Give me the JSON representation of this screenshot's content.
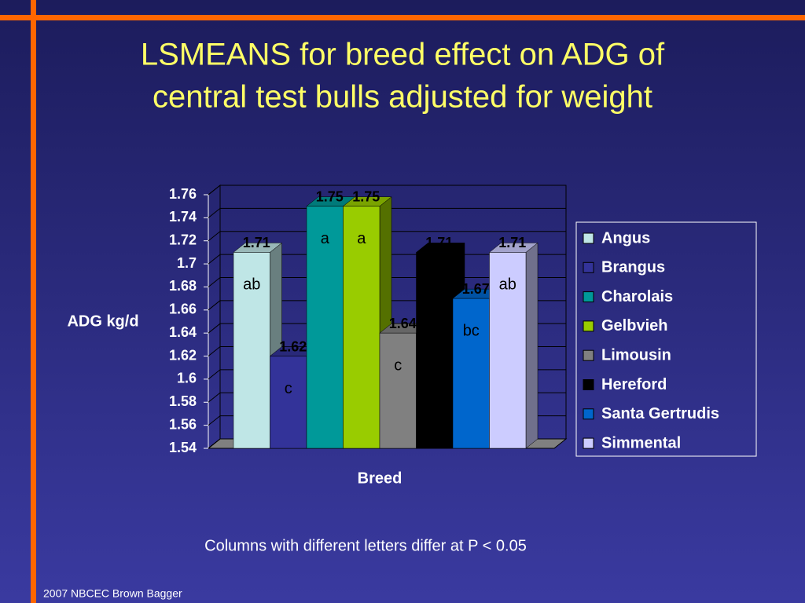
{
  "chart_data": {
    "type": "bar3d",
    "title": [
      "LSMEANS for breed effect on ADG of",
      "central test bulls adjusted for weight"
    ],
    "xlabel": "Breed",
    "ylabel": "ADG kg/d",
    "ylim": [
      1.54,
      1.76
    ],
    "yticks": [
      1.54,
      1.56,
      1.58,
      1.6,
      1.62,
      1.64,
      1.66,
      1.68,
      1.7,
      1.72,
      1.74,
      1.76
    ],
    "grid": true,
    "legend": "right",
    "series": [
      {
        "name": "Angus",
        "color": "#bfe6e6",
        "values": [
          1.71
        ],
        "letter": "ab"
      },
      {
        "name": "Brangus",
        "color": "#333399",
        "values": [
          1.62
        ],
        "letter": "c"
      },
      {
        "name": "Charolais",
        "color": "#009999",
        "values": [
          1.75
        ],
        "letter": "a"
      },
      {
        "name": "Gelbvieh",
        "color": "#99cc00",
        "values": [
          1.75
        ],
        "letter": "a"
      },
      {
        "name": "Limousin",
        "color": "#808080",
        "values": [
          1.64
        ],
        "letter": "c"
      },
      {
        "name": "Hereford",
        "color": "#000000",
        "values": [
          1.71
        ],
        "letter": null
      },
      {
        "name": "Santa Gertrudis",
        "color": "#0066cc",
        "values": [
          1.67
        ],
        "letter": "bc"
      },
      {
        "name": "Simmental",
        "color": "#ccccff",
        "values": [
          1.71
        ],
        "letter": "ab"
      }
    ],
    "note": "Columns with different letters differ at P < 0.05",
    "footer": "2007 NBCEC Brown Bagger"
  }
}
